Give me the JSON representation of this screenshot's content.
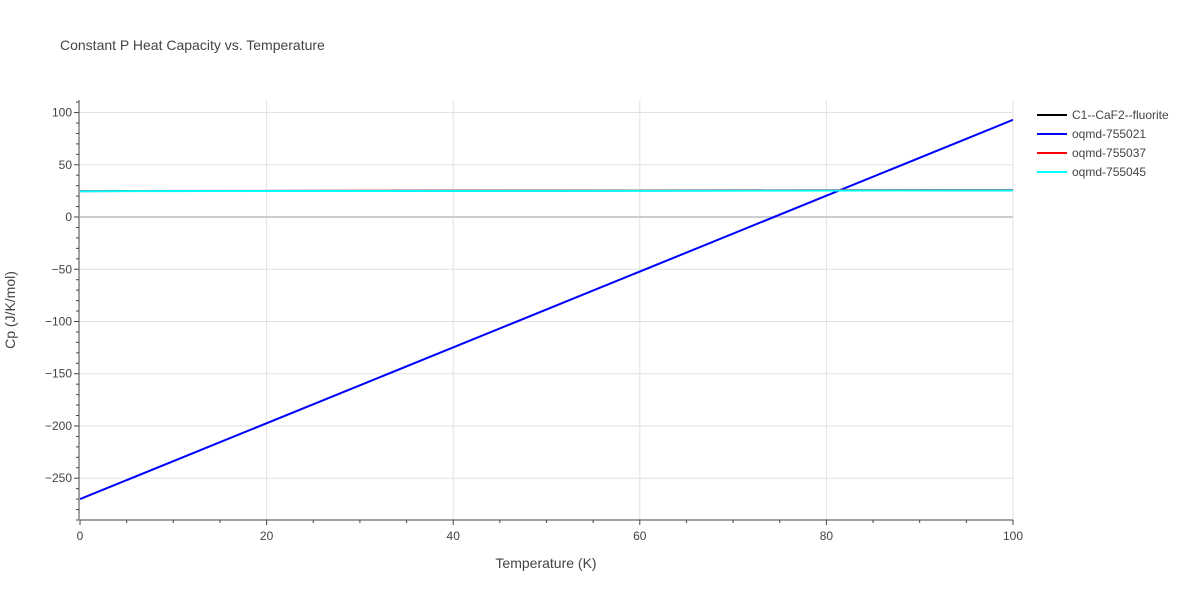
{
  "chart_data": {
    "type": "line",
    "title": "Constant P Heat Capacity vs. Temperature",
    "xlabel": "Temperature (K)",
    "ylabel": "Cp (J/K/mol)",
    "xlim": [
      0,
      100
    ],
    "ylim": [
      -290,
      112
    ],
    "xticks": [
      0,
      20,
      40,
      60,
      80,
      100
    ],
    "yticks": [
      100,
      50,
      0,
      -50,
      -100,
      -150,
      -200,
      -250
    ],
    "ytick_labels": [
      "100",
      "50",
      "0",
      "−50",
      "−100",
      "−150",
      "−200",
      "−250"
    ],
    "grid": true,
    "legend_position": "top-right",
    "series": [
      {
        "name": "C1--CaF2--fluorite",
        "color": "#000000",
        "x": [
          0,
          100
        ],
        "y": [
          24.8,
          25.6
        ]
      },
      {
        "name": "oqmd-755021",
        "color": "#0000ff",
        "x": [
          0,
          100
        ],
        "y": [
          -270,
          93
        ]
      },
      {
        "name": "oqmd-755037",
        "color": "#ff0000",
        "x": [
          0,
          100
        ],
        "y": [
          24.9,
          25.8
        ]
      },
      {
        "name": "oqmd-755045",
        "color": "#00ffff",
        "x": [
          0,
          100
        ],
        "y": [
          24.7,
          25.5
        ]
      }
    ]
  }
}
